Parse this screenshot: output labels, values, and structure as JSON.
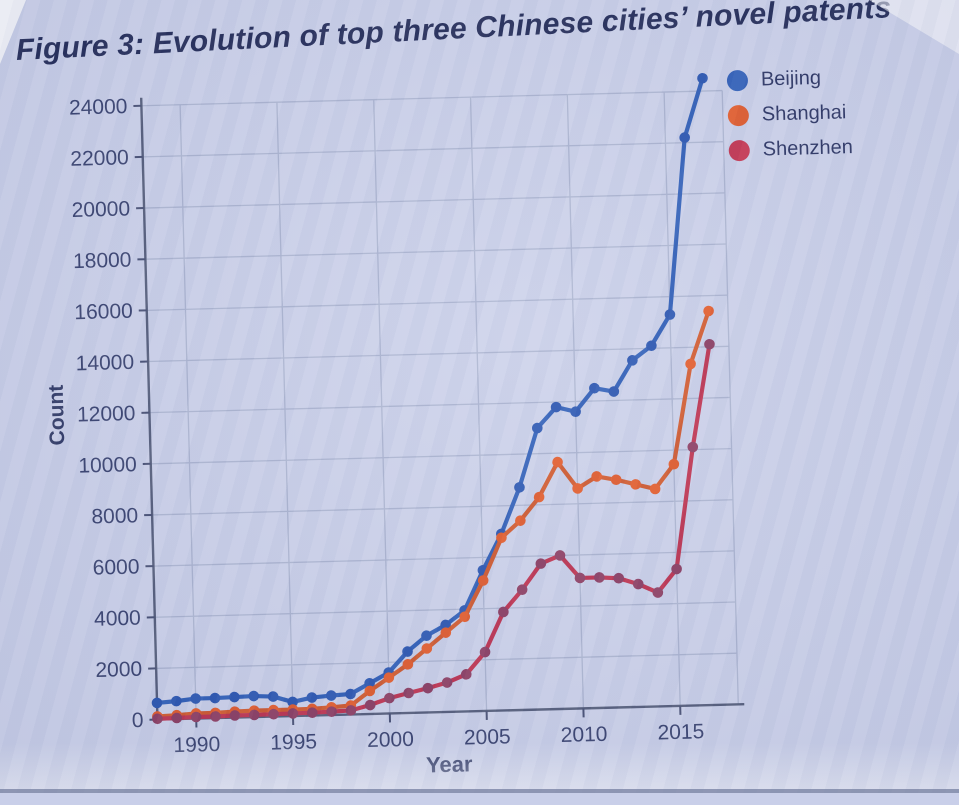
{
  "title": "Figure 3: Evolution of top three Chinese cities’ novel patents",
  "legend": {
    "items": [
      {
        "label": "Beijing",
        "color": "#2355b4"
      },
      {
        "label": "Shanghai",
        "color": "#e2511d"
      },
      {
        "label": "Shenzhen",
        "color": "#c22744"
      }
    ]
  },
  "chart_data": {
    "type": "line",
    "title": "Figure 3: Evolution of top three Chinese cities’ novel patents",
    "xlabel": "Year",
    "ylabel": "Count",
    "xlim": [
      1988,
      2018
    ],
    "ylim": [
      0,
      24000
    ],
    "xticks": [
      1990,
      1995,
      2000,
      2005,
      2010,
      2015
    ],
    "yticks": [
      0,
      2000,
      4000,
      6000,
      8000,
      10000,
      12000,
      14000,
      16000,
      18000,
      20000,
      22000,
      24000
    ],
    "grid": true,
    "legend_position": "top-right",
    "x": [
      1988,
      1989,
      1990,
      1991,
      1992,
      1993,
      1994,
      1995,
      1996,
      1997,
      1998,
      1999,
      2000,
      2001,
      2002,
      2003,
      2004,
      2005,
      2006,
      2007,
      2008,
      2009,
      2010,
      2011,
      2012,
      2013,
      2014,
      2015,
      2016,
      2017
    ],
    "series": [
      {
        "name": "Beijing",
        "color": "#2355b4",
        "marker_color": "#1e4cad",
        "values": [
          650,
          700,
          780,
          780,
          800,
          820,
          780,
          550,
          700,
          760,
          800,
          1200,
          1600,
          2400,
          3000,
          3400,
          3950,
          5500,
          6900,
          8700,
          11000,
          11800,
          11600,
          12500,
          12350,
          13550,
          14100,
          15300,
          22200,
          24500
        ]
      },
      {
        "name": "Shanghai",
        "color": "#cf4f20",
        "marker_color": "#e2511d",
        "values": [
          120,
          150,
          200,
          200,
          230,
          250,
          250,
          250,
          260,
          300,
          350,
          900,
          1400,
          1900,
          2500,
          3100,
          3700,
          5100,
          6750,
          7400,
          8300,
          9650,
          8600,
          9050,
          8900,
          8700,
          8500,
          9450,
          13350,
          15400
        ]
      },
      {
        "name": "Shenzhen",
        "color": "#bb2544",
        "marker_color": "#863158",
        "values": [
          30,
          40,
          60,
          60,
          80,
          80,
          90,
          100,
          110,
          130,
          160,
          350,
          600,
          780,
          950,
          1150,
          1450,
          2300,
          3850,
          4700,
          5700,
          6000,
          5100,
          5100,
          5050,
          4800,
          4450,
          5350,
          10100,
          14100
        ]
      }
    ],
    "style": {
      "background": "#c9cfe9",
      "grid_color": "#a7b0ce",
      "axis_color": "#4a5372",
      "tick_label_color": "#2c3666",
      "axis_title_color": "#232d5c",
      "title_color": "#151e4d"
    }
  }
}
